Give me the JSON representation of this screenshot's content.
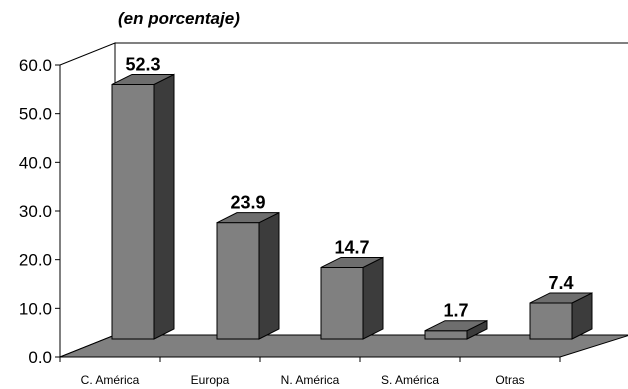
{
  "chart_data": {
    "type": "bar",
    "subtitle": "(en porcentaje)",
    "categories": [
      "C. América",
      "Europa",
      "N. América",
      "S. América",
      "Otras"
    ],
    "values": [
      52.3,
      23.9,
      14.7,
      1.7,
      7.4
    ],
    "data_labels": [
      "52.3",
      "23.9",
      "14.7",
      "1.7",
      "7.4"
    ],
    "y_ticks": [
      "0.0",
      "10.0",
      "20.0",
      "30.0",
      "40.0",
      "50.0",
      "60.0"
    ],
    "ylim": [
      0,
      60
    ],
    "grid": false,
    "legend": "none",
    "colors": {
      "bar_front": "#808080",
      "bar_side": "#3c3c3c",
      "bar_top": "#6e6e6e",
      "floor": "#808080",
      "wall": "#ffffff",
      "axis": "#000000"
    }
  }
}
